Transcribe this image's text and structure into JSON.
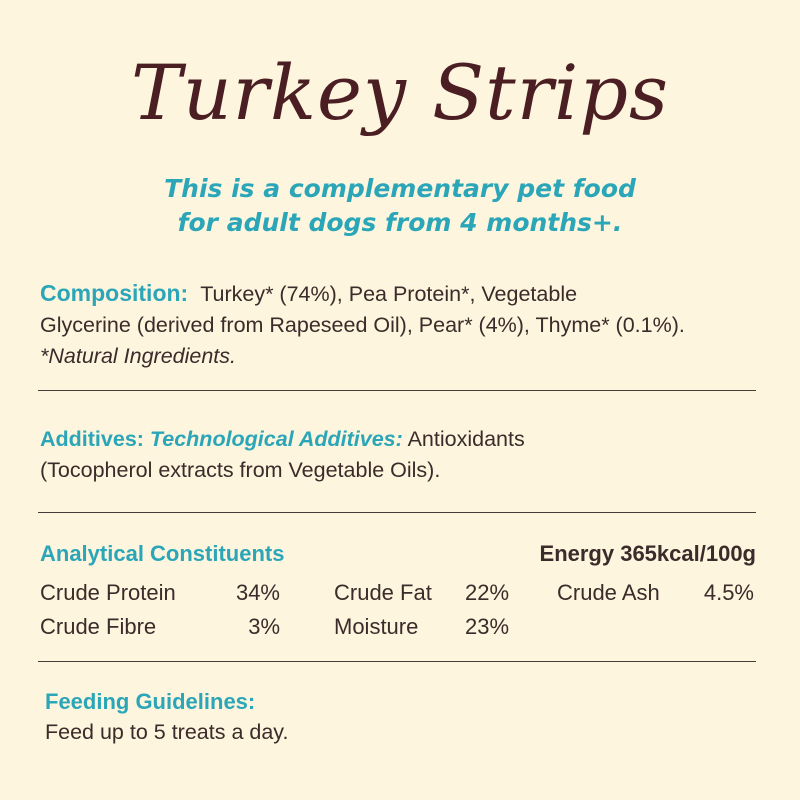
{
  "title": "Turkey Strips",
  "subtitle": {
    "line1": "This is a complementary pet food",
    "line2": "for adult dogs from 4 months+."
  },
  "composition": {
    "label": "Composition:",
    "text_line1": "Turkey* (74%), Pea Protein*, Vegetable",
    "text_line2": "Glycerine (derived from Rapeseed Oil), Pear* (4%), Thyme* (0.1%).",
    "note": "*Natural Ingredients."
  },
  "additives": {
    "label": "Additives:",
    "sublabel": "Technological Additives:",
    "text_line1": "Antioxidants",
    "text_line2": "(Tocopherol extracts from Vegetable Oils)."
  },
  "analytical": {
    "label": "Analytical Constituents",
    "energy": "Energy 365kcal/100g",
    "rows": [
      [
        {
          "name": "Crude Protein",
          "value": "34%"
        },
        {
          "name": "Crude Fat",
          "value": "22%"
        },
        {
          "name": "Crude Ash",
          "value": "4.5%"
        }
      ],
      [
        {
          "name": "Crude Fibre",
          "value": "3%"
        },
        {
          "name": "Moisture",
          "value": "23%"
        }
      ]
    ]
  },
  "feeding": {
    "label": "Feeding Guidelines:",
    "text": "Feed up to 5 treats a day."
  },
  "colors": {
    "background": "#fdf5dd",
    "title": "#4a1e22",
    "accent": "#2ba6b8",
    "text": "#3b2b2a"
  }
}
